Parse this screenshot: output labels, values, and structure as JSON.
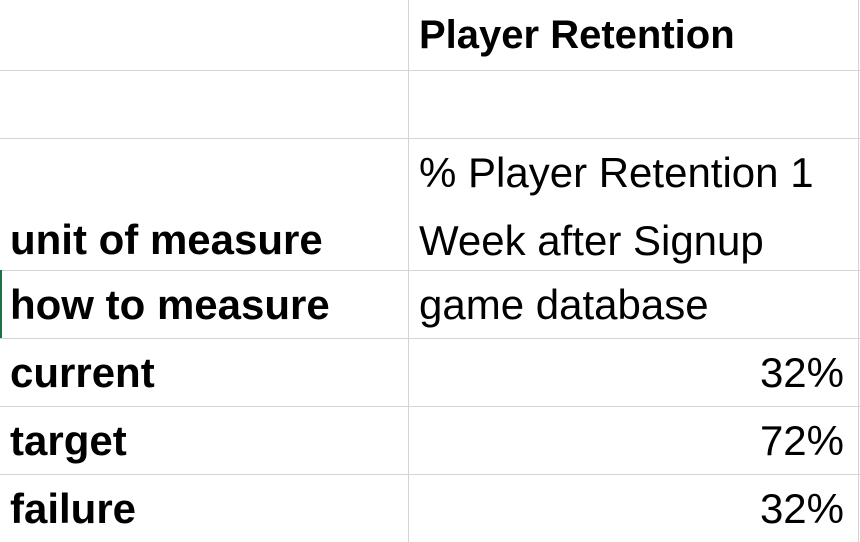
{
  "table": {
    "header": {
      "label": "",
      "value": "Player Retention"
    },
    "rows": [
      {
        "label": "",
        "value": ""
      },
      {
        "label": "unit of measure",
        "value": "% Player Retention 1 Week after Signup"
      },
      {
        "label": "how to measure",
        "value": "game database"
      },
      {
        "label": "current",
        "value": "32%"
      },
      {
        "label": "target",
        "value": "72%"
      },
      {
        "label": "failure",
        "value": "32%"
      }
    ]
  },
  "colors": {
    "gridline": "#d4d4d4",
    "active_cell_edge": "#1e7145"
  }
}
